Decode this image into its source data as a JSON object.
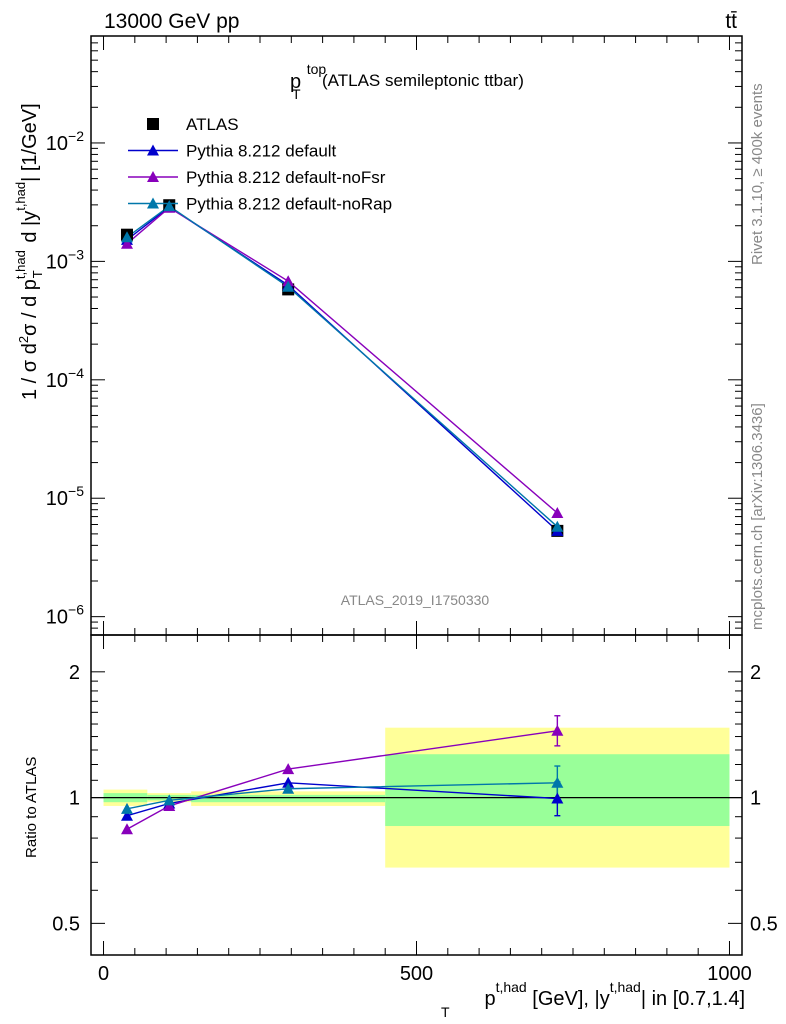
{
  "header": {
    "energy": "13000 GeV pp",
    "process": "tt̄"
  },
  "side_labels": {
    "rivet": "Rivet 3.1.10, ≥ 400k events",
    "mcplots": "mcplots.cern.ch [arXiv:1306.3436]"
  },
  "watermark": "ATLAS_2019_I1750330",
  "chart_data": [
    {
      "type": "line",
      "panel": "main",
      "title": "p_T^top (ATLAS semileptonic ttbar)",
      "title_parts": {
        "base": "p",
        "sup": "top",
        "sub": "T",
        "rest": "(ATLAS semileptonic ttbar)"
      },
      "ylabel": "1 / σ d²σ / d p_T^{t,had} d |y^{t,had}| [1/GeV]",
      "yscale": "log",
      "ylim": [
        7e-07,
        0.08
      ],
      "xlim": [
        -20,
        1020
      ],
      "y_ticks": [
        {
          "value": 1e-06,
          "base": "10",
          "exp": "−6"
        },
        {
          "value": 1e-05,
          "base": "10",
          "exp": "−5"
        },
        {
          "value": 0.0001,
          "base": "10",
          "exp": "−4"
        },
        {
          "value": 0.001,
          "base": "10",
          "exp": "−3"
        },
        {
          "value": 0.01,
          "base": "10",
          "exp": "−2"
        }
      ],
      "legend_position": "top-left",
      "x": [
        37.5,
        105,
        295,
        725
      ],
      "series": [
        {
          "name": "ATLAS",
          "marker": "square",
          "color": "#000000",
          "values": [
            0.00168,
            0.00298,
            0.00058,
            5.3e-06
          ]
        },
        {
          "name": "Pythia 8.212 default",
          "marker": "triangle",
          "color": "#0000cc",
          "values": [
            0.00152,
            0.00288,
            0.00063,
            5.3e-06
          ]
        },
        {
          "name": "Pythia 8.212 default-noFsr",
          "marker": "triangle",
          "color": "#8800bb",
          "values": [
            0.00141,
            0.00284,
            0.00068,
            7.5e-06
          ]
        },
        {
          "name": "Pythia 8.212 default-noRap",
          "marker": "triangle",
          "color": "#0077aa",
          "values": [
            0.0016,
            0.00293,
            0.00061,
            5.75e-06
          ]
        }
      ]
    },
    {
      "type": "line",
      "panel": "ratio",
      "ylabel": "Ratio to ATLAS",
      "xlabel": "p_T^{t,had} [GeV], |y^{t,had}| in [0.7,1.4]",
      "ylim": [
        0.42,
        2.45
      ],
      "yscale": "log",
      "xlim": [
        -20,
        1020
      ],
      "x_ticks": [
        {
          "value": 0,
          "label": "0"
        },
        {
          "value": 500,
          "label": "500"
        },
        {
          "value": 1000,
          "label": "1000"
        }
      ],
      "y_ticks": [
        {
          "value": 0.5,
          "label": "0.5"
        },
        {
          "value": 1,
          "label": "1"
        },
        {
          "value": 2,
          "label": "2"
        }
      ],
      "bands": [
        {
          "x0": 0,
          "x1": 70,
          "yellow": [
            0.955,
            1.045
          ],
          "green": [
            0.975,
            1.025
          ]
        },
        {
          "x0": 70,
          "x1": 140,
          "yellow": [
            0.975,
            1.025
          ],
          "green": [
            0.985,
            1.015
          ]
        },
        {
          "x0": 140,
          "x1": 450,
          "yellow": [
            0.955,
            1.035
          ],
          "green": [
            0.975,
            1.015
          ]
        },
        {
          "x0": 450,
          "x1": 1000,
          "yellow": [
            0.68,
            1.47
          ],
          "green": [
            0.855,
            1.27
          ]
        }
      ],
      "x": [
        37.5,
        105,
        295,
        725
      ],
      "series": [
        {
          "name": "Pythia 8.212 default",
          "color": "#0000cc",
          "values": [
            0.905,
            0.968,
            1.085,
            0.995
          ],
          "error_last": [
            0.905,
            1.09
          ]
        },
        {
          "name": "Pythia 8.212 default-noFsr",
          "color": "#8800bb",
          "values": [
            0.84,
            0.955,
            1.17,
            1.445
          ],
          "error_last": [
            1.33,
            1.57
          ]
        },
        {
          "name": "Pythia 8.212 default-noRap",
          "color": "#0077aa",
          "values": [
            0.94,
            0.985,
            1.05,
            1.085
          ],
          "error_last": [
            0.99,
            1.19
          ]
        }
      ]
    }
  ]
}
